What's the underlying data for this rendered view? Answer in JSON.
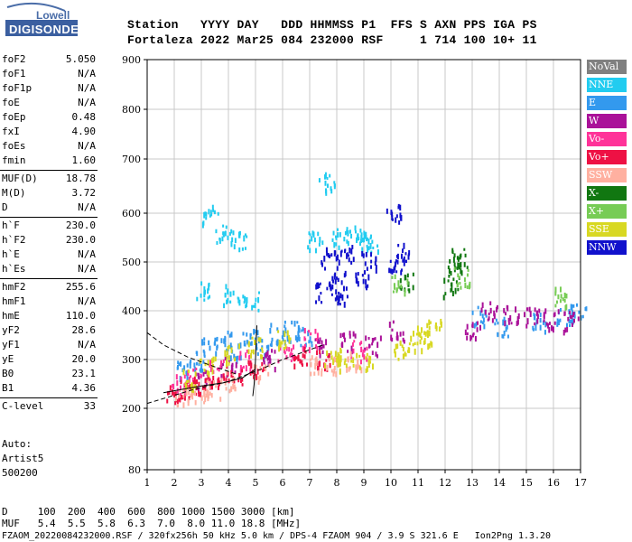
{
  "logo": {
    "brand": "Lowell",
    "product": "DIGISONDE"
  },
  "header": {
    "line1": "Station   YYYY DAY   DDD HHMMSS P1  FFS S AXN PPS IGA PS",
    "line2": "Fortaleza 2022 Mar25 084 232000 RSF     1 714 100 10+ 11"
  },
  "params": [
    {
      "name": "foF2",
      "value": "5.050"
    },
    {
      "name": "foF1",
      "value": "N/A"
    },
    {
      "name": "foF1p",
      "value": "N/A"
    },
    {
      "name": "foE",
      "value": "N/A"
    },
    {
      "name": "foEp",
      "value": "0.48"
    },
    {
      "name": "fxI",
      "value": "4.90"
    },
    {
      "name": "foEs",
      "value": "N/A"
    },
    {
      "name": "fmin",
      "value": "1.60"
    },
    {
      "name": "MUF(D)",
      "value": "18.78"
    },
    {
      "name": "M(D)",
      "value": "3.72"
    },
    {
      "name": "D",
      "value": "N/A"
    },
    {
      "name": "h`F",
      "value": "230.0"
    },
    {
      "name": "h`F2",
      "value": "230.0"
    },
    {
      "name": "h`E",
      "value": "N/A"
    },
    {
      "name": "h`Es",
      "value": "N/A"
    },
    {
      "name": "hmF2",
      "value": "255.6"
    },
    {
      "name": "hmF1",
      "value": "N/A"
    },
    {
      "name": "hmE",
      "value": "110.0"
    },
    {
      "name": "yF2",
      "value": "28.6"
    },
    {
      "name": "yF1",
      "value": "N/A"
    },
    {
      "name": "yE",
      "value": "20.0"
    },
    {
      "name": "B0",
      "value": "23.1"
    },
    {
      "name": "B1",
      "value": "4.36"
    },
    {
      "name": "C-level",
      "value": "33"
    }
  ],
  "autoscaling": {
    "line1": "Auto:",
    "line2": "Artist5",
    "line3": "500200"
  },
  "footer": {
    "d_row": "D     100  200  400  600  800 1000 1500 3000 [km]",
    "muf_row": "MUF   5.4  5.5  5.8  6.3  7.0  8.0 11.0 18.8 [MHz]",
    "file_row": "FZAOM_20220084232000.RSF / 320fx256h 50 kHz 5.0 km / DPS-4 FZAOM 904 / 3.9 S 321.6 E   Ion2Png 1.3.20"
  },
  "legend": [
    {
      "label": "NoVal",
      "color": "#808080"
    },
    {
      "label": "NNE",
      "color": "#22ccf0"
    },
    {
      "label": "E",
      "color": "#3399ee"
    },
    {
      "label": "W",
      "color": "#aa1199"
    },
    {
      "label": "Vo-",
      "color": "#ff3399"
    },
    {
      "label": "Vo+",
      "color": "#ee1144"
    },
    {
      "label": "SSW",
      "color": "#ffb0a0"
    },
    {
      "label": "X-",
      "color": "#117711"
    },
    {
      "label": "X+",
      "color": "#77cc55"
    },
    {
      "label": "SSE",
      "color": "#d8d822"
    },
    {
      "label": "NNW",
      "color": "#1111cc"
    }
  ],
  "chart_data": {
    "type": "scatter",
    "title": "",
    "xlabel": "",
    "ylabel": "",
    "xlim": [
      1,
      17
    ],
    "ylim": [
      80,
      900
    ],
    "x_ticks": [
      "1",
      "2",
      "3",
      "4",
      "5",
      "6",
      "7",
      "8",
      "9",
      "10",
      "11",
      "12",
      "13",
      "14",
      "15",
      "16",
      "17"
    ],
    "y_ticks": [
      "80",
      "200",
      "300",
      "400",
      "500",
      "600",
      "700",
      "800",
      "900"
    ],
    "y_tick_values": [
      80,
      200,
      300,
      400,
      500,
      600,
      700,
      800,
      900
    ],
    "grid": true,
    "series": [
      {
        "name": "NNE",
        "points": [
          [
            3.3,
            600
          ],
          [
            3.8,
            560
          ],
          [
            4.4,
            545
          ],
          [
            7.2,
            545
          ],
          [
            7.6,
            660
          ],
          [
            8.1,
            550
          ],
          [
            8.6,
            560
          ],
          [
            9.0,
            550
          ],
          [
            9.2,
            540
          ],
          [
            3.1,
            440
          ],
          [
            4.1,
            435
          ],
          [
            4.8,
            420
          ]
        ]
      },
      {
        "name": "E",
        "points": [
          [
            2.3,
            280
          ],
          [
            2.8,
            300
          ],
          [
            3.3,
            330
          ],
          [
            3.8,
            340
          ],
          [
            4.3,
            320
          ],
          [
            4.8,
            345
          ],
          [
            5.3,
            330
          ],
          [
            5.8,
            355
          ],
          [
            6.3,
            360
          ],
          [
            6.8,
            350
          ],
          [
            13.2,
            390
          ],
          [
            14.1,
            370
          ],
          [
            15.5,
            380
          ],
          [
            16.4,
            390
          ],
          [
            16.9,
            395
          ]
        ]
      },
      {
        "name": "W",
        "points": [
          [
            3.0,
            260
          ],
          [
            4.0,
            290
          ],
          [
            5.5,
            305
          ],
          [
            7.4,
            330
          ],
          [
            8.4,
            340
          ],
          [
            9.3,
            330
          ],
          [
            10.2,
            360
          ],
          [
            13.0,
            360
          ],
          [
            13.6,
            400
          ],
          [
            14.4,
            395
          ],
          [
            15.2,
            390
          ],
          [
            15.9,
            385
          ],
          [
            16.6,
            380
          ]
        ]
      },
      {
        "name": "Vo-",
        "points": [
          [
            2.2,
            250
          ],
          [
            2.7,
            265
          ],
          [
            3.5,
            280
          ],
          [
            4.6,
            300
          ],
          [
            6.1,
            320
          ],
          [
            7.0,
            345
          ],
          [
            8.8,
            320
          ]
        ]
      },
      {
        "name": "Vo+",
        "points": [
          [
            2.0,
            235
          ],
          [
            2.5,
            245
          ],
          [
            3.0,
            250
          ],
          [
            3.6,
            265
          ],
          [
            4.2,
            270
          ],
          [
            5.0,
            285
          ],
          [
            6.6,
            310
          ],
          [
            7.5,
            300
          ]
        ]
      },
      {
        "name": "SSW",
        "points": [
          [
            2.3,
            225
          ],
          [
            2.9,
            230
          ],
          [
            3.4,
            240
          ],
          [
            4.0,
            260
          ],
          [
            5.2,
            275
          ],
          [
            7.2,
            290
          ],
          [
            7.9,
            295
          ],
          [
            8.6,
            300
          ]
        ]
      },
      {
        "name": "X-",
        "points": [
          [
            10.6,
            460
          ],
          [
            12.3,
            490
          ],
          [
            12.5,
            510
          ],
          [
            12.2,
            450
          ]
        ]
      },
      {
        "name": "X+",
        "points": [
          [
            10.3,
            460
          ],
          [
            12.6,
            470
          ],
          [
            16.3,
            430
          ]
        ]
      },
      {
        "name": "SSE",
        "points": [
          [
            2.6,
            260
          ],
          [
            3.2,
            290
          ],
          [
            4.1,
            315
          ],
          [
            5.0,
            330
          ],
          [
            6.0,
            340
          ],
          [
            7.8,
            300
          ],
          [
            8.3,
            310
          ],
          [
            9.0,
            295
          ],
          [
            10.4,
            320
          ],
          [
            10.9,
            340
          ],
          [
            11.2,
            350
          ],
          [
            11.6,
            365
          ]
        ]
      },
      {
        "name": "NNW",
        "points": [
          [
            7.7,
            510
          ],
          [
            8.0,
            470
          ],
          [
            8.3,
            515
          ],
          [
            8.9,
            470
          ],
          [
            9.2,
            505
          ],
          [
            7.5,
            440
          ],
          [
            8.2,
            430
          ],
          [
            10.1,
            600
          ],
          [
            10.2,
            500
          ],
          [
            10.4,
            520
          ]
        ]
      }
    ],
    "trace_lines": [
      {
        "style": "dashed",
        "points": [
          [
            1.0,
            210
          ],
          [
            2.8,
            240
          ],
          [
            4.0,
            255
          ],
          [
            5.2,
            280
          ],
          [
            6.0,
            300
          ],
          [
            7.5,
            330
          ]
        ]
      },
      {
        "style": "dashed",
        "points": [
          [
            1.0,
            355
          ],
          [
            1.6,
            330
          ],
          [
            2.5,
            305
          ],
          [
            3.5,
            285
          ],
          [
            4.3,
            270
          ]
        ]
      },
      {
        "style": "solid",
        "points": [
          [
            1.6,
            232
          ],
          [
            2.2,
            238
          ],
          [
            3.0,
            246
          ],
          [
            3.8,
            252
          ],
          [
            4.5,
            262
          ],
          [
            5.0,
            280
          ]
        ]
      },
      {
        "style": "solid",
        "points": [
          [
            4.9,
            225
          ],
          [
            4.95,
            250
          ],
          [
            5.0,
            300
          ],
          [
            5.05,
            370
          ]
        ]
      }
    ]
  }
}
